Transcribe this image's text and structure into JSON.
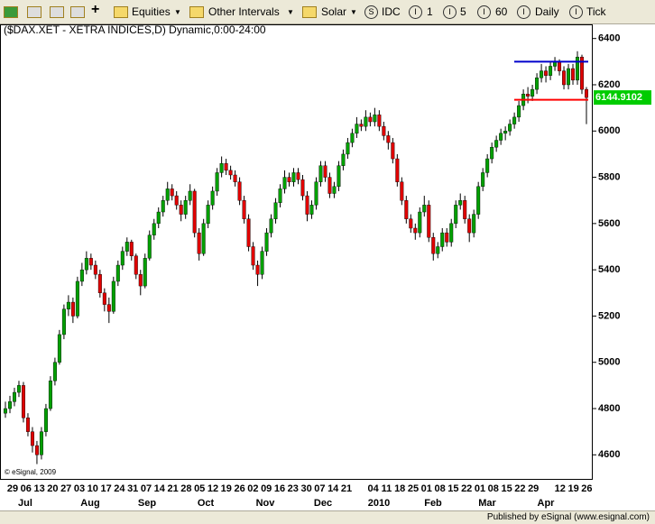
{
  "toolbar": {
    "items": [
      "Equities",
      "Other Intervals",
      "Solar",
      "IDC",
      "1",
      "5",
      "60",
      "Daily",
      "Tick"
    ]
  },
  "chart_data": {
    "type": "candlestick",
    "title": "($DAX.XET - XETRA INDICES,D) Dynamic,0:00-24:00",
    "copyright": "© eSignal, 2009",
    "up_color": "#00a000",
    "down_color": "#e00000",
    "ylim": [
      4570,
      6430
    ],
    "yticks": [
      4600,
      4800,
      5000,
      5200,
      5400,
      5600,
      5800,
      6000,
      6200,
      6400
    ],
    "day_labels": [
      "29",
      "06",
      "13",
      "20",
      "27",
      "03",
      "10",
      "17",
      "24",
      "31",
      "07",
      "14",
      "21",
      "28",
      "05",
      "12",
      "19",
      "26",
      "02",
      "09",
      "16",
      "23",
      "30",
      "07",
      "14",
      "21",
      null,
      "04",
      "11",
      "18",
      "25",
      "01",
      "08",
      "15",
      "22",
      "01",
      "08",
      "15",
      "22",
      "29",
      null,
      "12",
      "19",
      "26"
    ],
    "month_labels": [
      "Jul",
      "Aug",
      "Sep",
      "Oct",
      "Nov",
      "Dec",
      "2010",
      "Feb",
      "Mar",
      "Apr"
    ],
    "hlines": [
      {
        "value": 6300,
        "color": "#0000cc"
      },
      {
        "value": 6135,
        "color": "#ff0000"
      }
    ],
    "last_color": "#00cc00",
    "candles": [
      [
        4780,
        4830,
        4760,
        4800
      ],
      [
        4800,
        4855,
        4780,
        4830
      ],
      [
        4830,
        4890,
        4810,
        4870
      ],
      [
        4870,
        4920,
        4850,
        4900
      ],
      [
        4900,
        4915,
        4740,
        4760
      ],
      [
        4760,
        4780,
        4680,
        4700
      ],
      [
        4700,
        4720,
        4610,
        4640
      ],
      [
        4640,
        4660,
        4560,
        4600
      ],
      [
        4600,
        4720,
        4580,
        4700
      ],
      [
        4700,
        4820,
        4680,
        4800
      ],
      [
        4800,
        4940,
        4790,
        4920
      ],
      [
        4920,
        5020,
        4900,
        5000
      ],
      [
        5000,
        5140,
        4990,
        5120
      ],
      [
        5120,
        5250,
        5100,
        5230
      ],
      [
        5230,
        5290,
        5200,
        5260
      ],
      [
        5260,
        5280,
        5170,
        5200
      ],
      [
        5200,
        5370,
        5190,
        5350
      ],
      [
        5350,
        5430,
        5330,
        5400
      ],
      [
        5400,
        5480,
        5380,
        5450
      ],
      [
        5450,
        5470,
        5400,
        5420
      ],
      [
        5420,
        5440,
        5360,
        5380
      ],
      [
        5380,
        5400,
        5280,
        5300
      ],
      [
        5300,
        5320,
        5220,
        5250
      ],
      [
        5250,
        5280,
        5170,
        5220
      ],
      [
        5220,
        5370,
        5210,
        5350
      ],
      [
        5350,
        5440,
        5330,
        5420
      ],
      [
        5420,
        5500,
        5400,
        5480
      ],
      [
        5480,
        5540,
        5460,
        5520
      ],
      [
        5520,
        5530,
        5440,
        5460
      ],
      [
        5460,
        5470,
        5360,
        5380
      ],
      [
        5380,
        5400,
        5290,
        5330
      ],
      [
        5330,
        5470,
        5320,
        5450
      ],
      [
        5450,
        5570,
        5440,
        5550
      ],
      [
        5550,
        5620,
        5530,
        5600
      ],
      [
        5600,
        5670,
        5580,
        5650
      ],
      [
        5650,
        5720,
        5630,
        5700
      ],
      [
        5700,
        5780,
        5680,
        5750
      ],
      [
        5750,
        5770,
        5700,
        5720
      ],
      [
        5720,
        5740,
        5660,
        5680
      ],
      [
        5680,
        5700,
        5610,
        5640
      ],
      [
        5640,
        5720,
        5620,
        5700
      ],
      [
        5700,
        5770,
        5680,
        5740
      ],
      [
        5740,
        5750,
        5540,
        5560
      ],
      [
        5560,
        5580,
        5440,
        5470
      ],
      [
        5470,
        5620,
        5460,
        5600
      ],
      [
        5600,
        5700,
        5580,
        5680
      ],
      [
        5680,
        5760,
        5660,
        5740
      ],
      [
        5740,
        5840,
        5720,
        5820
      ],
      [
        5820,
        5890,
        5800,
        5860
      ],
      [
        5860,
        5880,
        5810,
        5830
      ],
      [
        5830,
        5850,
        5790,
        5810
      ],
      [
        5810,
        5830,
        5760,
        5780
      ],
      [
        5780,
        5800,
        5680,
        5700
      ],
      [
        5700,
        5720,
        5600,
        5620
      ],
      [
        5620,
        5640,
        5480,
        5500
      ],
      [
        5500,
        5520,
        5400,
        5420
      ],
      [
        5420,
        5440,
        5330,
        5380
      ],
      [
        5380,
        5500,
        5360,
        5480
      ],
      [
        5480,
        5580,
        5460,
        5560
      ],
      [
        5560,
        5640,
        5540,
        5620
      ],
      [
        5620,
        5710,
        5600,
        5690
      ],
      [
        5690,
        5770,
        5670,
        5750
      ],
      [
        5750,
        5830,
        5730,
        5800
      ],
      [
        5800,
        5820,
        5760,
        5780
      ],
      [
        5780,
        5840,
        5760,
        5820
      ],
      [
        5820,
        5840,
        5770,
        5790
      ],
      [
        5790,
        5810,
        5700,
        5720
      ],
      [
        5720,
        5740,
        5610,
        5640
      ],
      [
        5640,
        5700,
        5620,
        5680
      ],
      [
        5680,
        5800,
        5660,
        5780
      ],
      [
        5780,
        5870,
        5760,
        5850
      ],
      [
        5850,
        5870,
        5780,
        5800
      ],
      [
        5800,
        5820,
        5710,
        5730
      ],
      [
        5730,
        5780,
        5710,
        5760
      ],
      [
        5760,
        5870,
        5740,
        5850
      ],
      [
        5850,
        5920,
        5830,
        5900
      ],
      [
        5900,
        5970,
        5880,
        5950
      ],
      [
        5950,
        6010,
        5930,
        5990
      ],
      [
        5990,
        6060,
        5970,
        6030
      ],
      [
        6030,
        6050,
        6000,
        6020
      ],
      [
        6020,
        6090,
        6000,
        6060
      ],
      [
        6060,
        6080,
        6020,
        6040
      ],
      [
        6040,
        6100,
        6020,
        6070
      ],
      [
        6070,
        6090,
        6000,
        6020
      ],
      [
        6020,
        6040,
        5960,
        5980
      ],
      [
        5980,
        6000,
        5920,
        5950
      ],
      [
        5950,
        5970,
        5860,
        5880
      ],
      [
        5880,
        5900,
        5760,
        5780
      ],
      [
        5780,
        5800,
        5680,
        5700
      ],
      [
        5700,
        5720,
        5600,
        5620
      ],
      [
        5620,
        5640,
        5560,
        5580
      ],
      [
        5580,
        5600,
        5530,
        5560
      ],
      [
        5560,
        5670,
        5540,
        5650
      ],
      [
        5650,
        5720,
        5630,
        5680
      ],
      [
        5680,
        5700,
        5520,
        5540
      ],
      [
        5540,
        5560,
        5440,
        5470
      ],
      [
        5470,
        5520,
        5450,
        5500
      ],
      [
        5500,
        5580,
        5480,
        5560
      ],
      [
        5560,
        5580,
        5500,
        5520
      ],
      [
        5520,
        5620,
        5500,
        5600
      ],
      [
        5600,
        5700,
        5580,
        5680
      ],
      [
        5680,
        5730,
        5660,
        5700
      ],
      [
        5700,
        5720,
        5600,
        5620
      ],
      [
        5620,
        5640,
        5520,
        5560
      ],
      [
        5560,
        5660,
        5540,
        5640
      ],
      [
        5640,
        5780,
        5620,
        5760
      ],
      [
        5760,
        5840,
        5740,
        5820
      ],
      [
        5820,
        5900,
        5800,
        5880
      ],
      [
        5880,
        5950,
        5860,
        5930
      ],
      [
        5930,
        5980,
        5910,
        5960
      ],
      [
        5960,
        6010,
        5940,
        5990
      ],
      [
        5990,
        6020,
        5960,
        6000
      ],
      [
        6000,
        6050,
        5980,
        6030
      ],
      [
        6030,
        6080,
        6010,
        6060
      ],
      [
        6060,
        6130,
        6040,
        6110
      ],
      [
        6110,
        6180,
        6090,
        6160
      ],
      [
        6160,
        6190,
        6120,
        6150
      ],
      [
        6150,
        6200,
        6130,
        6180
      ],
      [
        6180,
        6250,
        6160,
        6230
      ],
      [
        6230,
        6290,
        6210,
        6260
      ],
      [
        6260,
        6280,
        6210,
        6240
      ],
      [
        6240,
        6300,
        6220,
        6280
      ],
      [
        6280,
        6320,
        6260,
        6300
      ],
      [
        6300,
        6310,
        6240,
        6260
      ],
      [
        6260,
        6280,
        6180,
        6200
      ],
      [
        6200,
        6290,
        6180,
        6270
      ],
      [
        6270,
        6290,
        6200,
        6220
      ],
      [
        6220,
        6345,
        6200,
        6320
      ],
      [
        6320,
        6330,
        6160,
        6180
      ],
      [
        6180,
        6190,
        6030,
        6144.9102
      ]
    ]
  },
  "footer": "Published by eSignal (www.esignal.com)"
}
